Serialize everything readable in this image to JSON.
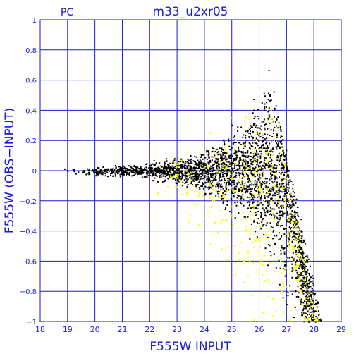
{
  "chart_data": {
    "type": "scatter",
    "title": "m33_u2xr05",
    "subtitle": "PC",
    "xlabel": "F555W  INPUT",
    "ylabel": "F555W  (OBS−INPUT)",
    "xlim": [
      18,
      29
    ],
    "ylim": [
      -1,
      1
    ],
    "x_ticks": [
      "18",
      "19",
      "20",
      "21",
      "22",
      "23",
      "24",
      "25",
      "26",
      "27",
      "28",
      "29"
    ],
    "y_ticks": [
      "−1",
      "−0.8",
      "−0.6",
      "−0.4",
      "−0.2",
      "0",
      "0.2",
      "0.4",
      "0.6",
      "0.8",
      "1"
    ],
    "grid": true,
    "series": [
      {
        "color": "#000000",
        "points": [
          [
            18.9,
            0.01
          ],
          [
            19.0,
            0.0
          ],
          [
            19.2,
            0.01
          ],
          [
            19.4,
            -0.01
          ],
          [
            19.6,
            0.0
          ],
          [
            19.8,
            0.01
          ],
          [
            20.0,
            0.0
          ],
          [
            20.2,
            -0.01
          ],
          [
            20.5,
            0.01
          ],
          [
            20.8,
            0.0
          ],
          [
            21.0,
            0.0
          ],
          [
            21.3,
            0.01
          ],
          [
            21.6,
            -0.01
          ],
          [
            21.9,
            0.0
          ],
          [
            22.2,
            0.01
          ],
          [
            22.5,
            -0.01
          ],
          [
            22.8,
            0.02
          ],
          [
            23.0,
            0.0
          ],
          [
            23.2,
            -0.03
          ],
          [
            23.4,
            0.03
          ],
          [
            23.6,
            -0.02
          ],
          [
            23.8,
            0.05
          ],
          [
            24.0,
            -0.04
          ],
          [
            24.2,
            0.06
          ],
          [
            24.4,
            -0.06
          ],
          [
            24.6,
            0.1
          ],
          [
            24.8,
            -0.12
          ],
          [
            25.0,
            0.15
          ],
          [
            25.2,
            -0.18
          ],
          [
            25.4,
            0.22
          ],
          [
            25.6,
            -0.25
          ],
          [
            25.8,
            0.3
          ],
          [
            26.0,
            -0.35
          ],
          [
            26.2,
            0.4
          ],
          [
            26.4,
            0.5
          ],
          [
            26.5,
            -0.45
          ],
          [
            26.7,
            0.35
          ],
          [
            26.8,
            -0.55
          ],
          [
            27.0,
            0.05
          ],
          [
            27.2,
            -0.62
          ],
          [
            27.4,
            -0.7
          ],
          [
            27.6,
            -0.8
          ],
          [
            27.8,
            -0.9
          ],
          [
            28.0,
            -0.96
          ]
        ]
      },
      {
        "color": "#ffff00",
        "points": [
          [
            22.3,
            -0.15
          ],
          [
            23.0,
            -0.05
          ],
          [
            23.6,
            -0.1
          ],
          [
            24.3,
            -0.2
          ],
          [
            24.8,
            -0.3
          ],
          [
            25.1,
            -0.5
          ],
          [
            25.3,
            0.25
          ],
          [
            25.6,
            -0.7
          ],
          [
            25.9,
            0.2
          ],
          [
            26.1,
            -0.6
          ],
          [
            26.3,
            0.4
          ],
          [
            26.5,
            -0.85
          ],
          [
            26.7,
            0.3
          ],
          [
            26.9,
            -0.75
          ],
          [
            27.1,
            -0.4
          ],
          [
            27.4,
            -0.5
          ],
          [
            27.7,
            -0.75
          ],
          [
            28.0,
            -0.9
          ],
          [
            28.2,
            -0.95
          ]
        ]
      }
    ]
  }
}
